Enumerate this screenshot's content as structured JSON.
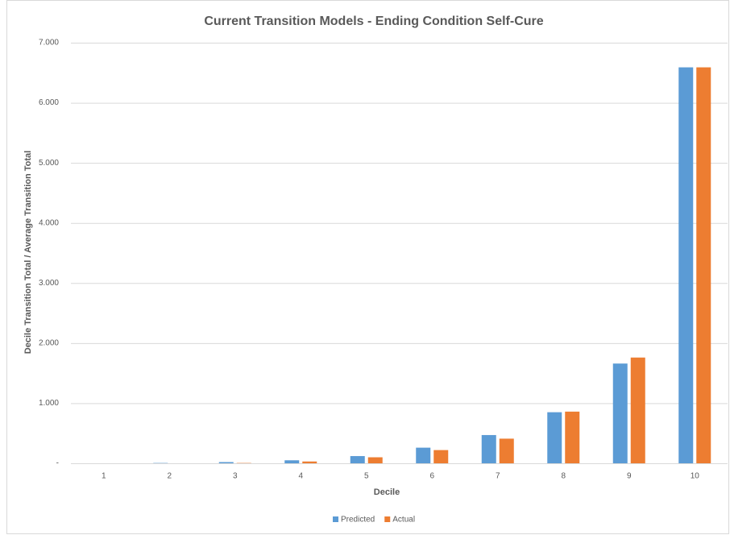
{
  "chart_data": {
    "type": "bar",
    "title": "Current Transition Models - Ending Condition Self-Cure",
    "x_label": "Decile",
    "y_label": "Decile Transition Total / Average Transition Total",
    "categories": [
      "1",
      "2",
      "3",
      "4",
      "5",
      "6",
      "7",
      "8",
      "9",
      "10"
    ],
    "series": [
      {
        "name": "Predicted",
        "color": "#5b9bd5",
        "values": [
          0,
          0.005,
          0.02,
          0.05,
          0.12,
          0.26,
          0.47,
          0.85,
          1.66,
          6.59
        ]
      },
      {
        "name": "Actual",
        "color": "#ed7d31",
        "values": [
          0,
          0,
          0.005,
          0.03,
          0.1,
          0.22,
          0.41,
          0.86,
          1.76,
          6.59
        ]
      }
    ],
    "ylim": [
      0,
      7
    ],
    "yticks": [
      {
        "value": 0,
        "label": "-"
      },
      {
        "value": 1,
        "label": "1.000"
      },
      {
        "value": 2,
        "label": "2.000"
      },
      {
        "value": 3,
        "label": "3.000"
      },
      {
        "value": 4,
        "label": "4.000"
      },
      {
        "value": 5,
        "label": "5.000"
      },
      {
        "value": 6,
        "label": "6.000"
      },
      {
        "value": 7,
        "label": "7.000"
      }
    ],
    "grid": true,
    "legend": "bottom"
  }
}
